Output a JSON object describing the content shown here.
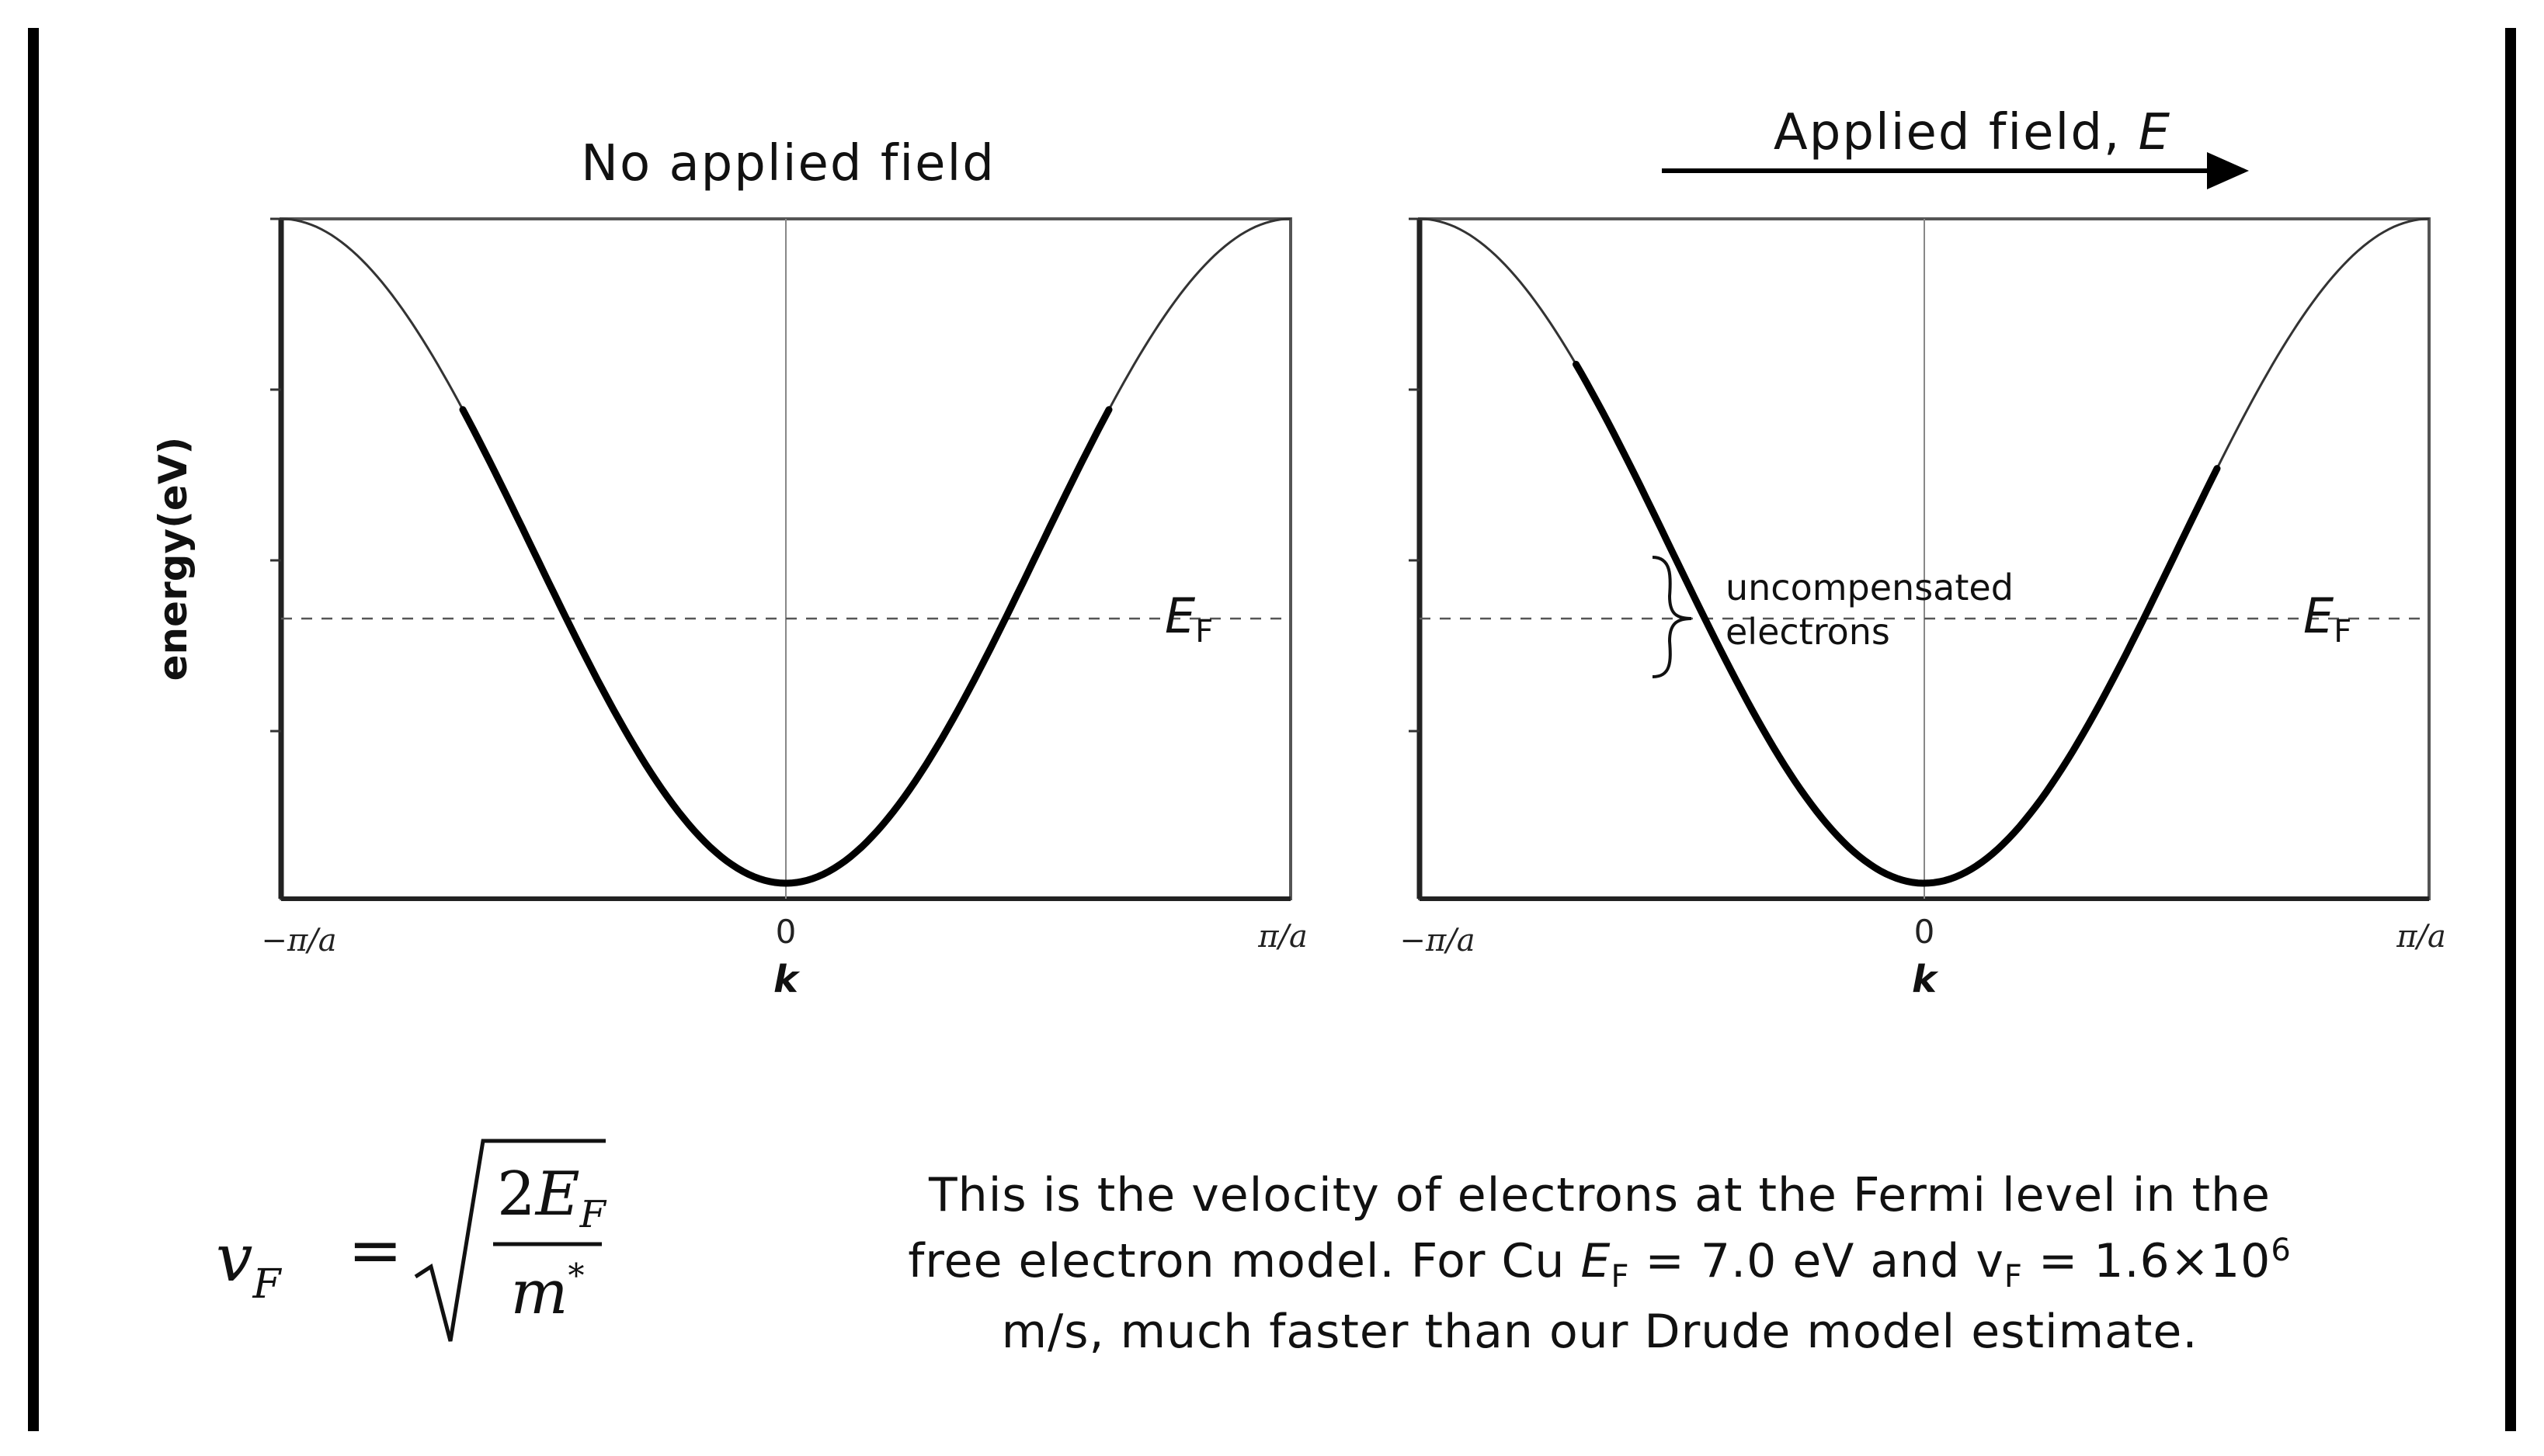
{
  "panels": [
    {
      "title": "No applied field",
      "ylabel": "energy(eV)",
      "xlabel": "k",
      "x_ticks": [
        "−π/a",
        "0",
        "π/a"
      ],
      "fermi_label_main": "E",
      "fermi_label_sub": "F",
      "occupied_k_range": [
        -0.64,
        0.64
      ]
    },
    {
      "title_text": "Applied field, ",
      "title_symbol": "E",
      "xlabel": "k",
      "x_ticks": [
        "−π/a",
        "0",
        "π/a"
      ],
      "fermi_label_main": "E",
      "fermi_label_sub": "F",
      "occupied_k_range": [
        -0.69,
        0.58
      ],
      "brace_label_line1": "uncompensated",
      "brace_label_line2": "electrons"
    }
  ],
  "formula": {
    "lhs_main": "v",
    "lhs_sub": "F",
    "equals": "=",
    "numerator_coef": "2",
    "numerator_main": "E",
    "numerator_sub": "F",
    "denominator_main": "m",
    "denominator_sup": "*"
  },
  "caption": {
    "line1": "This is the velocity of electrons at the Fermi level in the",
    "line2_a": "free electron model.  For Cu ",
    "line2_ef": "E",
    "line2_ef_sub": "F",
    "line2_b": " = 7.0 eV and v",
    "line2_vf_sub": "F",
    "line2_c": " = 1.6×10",
    "line2_exp": "6",
    "line3": "m/s, much faster than our Drude model estimate."
  }
}
